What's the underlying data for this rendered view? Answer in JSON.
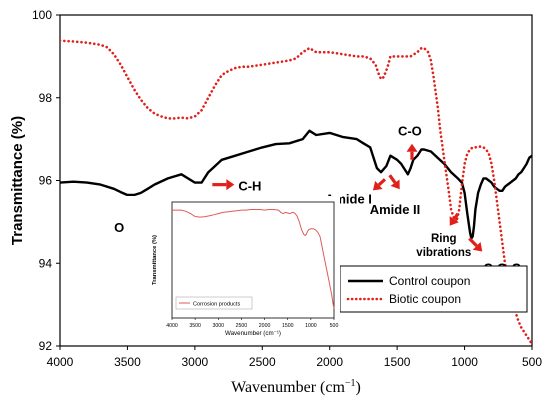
{
  "chart_data": [
    {
      "type": "line",
      "ylabel": "Transmittance (%)",
      "xlabel_main": "Wavenumber (cm",
      "xlabel_sup": "−1",
      "xlabel_close": ")",
      "xlim": [
        4000,
        500
      ],
      "ylim": [
        92,
        100
      ],
      "xticks": [
        "4000",
        "3500",
        "3000",
        "2500",
        "2000",
        "1500",
        "1000",
        "500"
      ],
      "yticks": [
        "92",
        "94",
        "96",
        "98",
        "100"
      ],
      "legend_position": "bottom-right",
      "series": [
        {
          "name": "Control coupon",
          "color": "#000000",
          "style": "solid",
          "x": [
            4000,
            3900,
            3800,
            3700,
            3600,
            3550,
            3500,
            3450,
            3400,
            3350,
            3300,
            3200,
            3100,
            3000,
            2950,
            2900,
            2850,
            2800,
            2700,
            2600,
            2500,
            2400,
            2300,
            2200,
            2150,
            2100,
            2000,
            1900,
            1800,
            1750,
            1700,
            1650,
            1620,
            1580,
            1550,
            1500,
            1470,
            1450,
            1420,
            1400,
            1380,
            1350,
            1320,
            1300,
            1250,
            1200,
            1150,
            1100,
            1050,
            1020,
            1000,
            980,
            960,
            950,
            940,
            930,
            920,
            900,
            880,
            860,
            840,
            820,
            800,
            780,
            760,
            740,
            720,
            700,
            680,
            660,
            640,
            620,
            600,
            580,
            560,
            540,
            520,
            500
          ],
          "y": [
            95.95,
            95.97,
            95.95,
            95.9,
            95.8,
            95.72,
            95.65,
            95.65,
            95.7,
            95.8,
            95.9,
            96.05,
            96.15,
            95.95,
            95.95,
            96.2,
            96.35,
            96.5,
            96.6,
            96.7,
            96.8,
            96.88,
            96.9,
            97.0,
            97.2,
            97.1,
            97.15,
            97.05,
            97.0,
            96.9,
            96.8,
            96.3,
            96.2,
            96.35,
            96.6,
            96.5,
            96.4,
            96.3,
            96.15,
            96.3,
            96.5,
            96.6,
            96.75,
            96.75,
            96.7,
            96.55,
            96.4,
            96.2,
            96.05,
            95.95,
            95.7,
            95.2,
            94.75,
            94.6,
            94.65,
            94.9,
            95.3,
            95.7,
            95.9,
            96.05,
            96.05,
            96.0,
            95.95,
            95.85,
            95.8,
            95.75,
            95.75,
            95.85,
            95.9,
            95.95,
            96.0,
            96.05,
            96.15,
            96.2,
            96.3,
            96.4,
            96.55,
            96.6
          ]
        },
        {
          "name": "Biotic coupon",
          "color": "#e0211b",
          "style": "dotted",
          "x": [
            4000,
            3900,
            3800,
            3700,
            3650,
            3600,
            3550,
            3500,
            3450,
            3400,
            3350,
            3300,
            3250,
            3200,
            3150,
            3100,
            3050,
            3000,
            2950,
            2900,
            2850,
            2800,
            2750,
            2700,
            2650,
            2600,
            2500,
            2400,
            2300,
            2250,
            2200,
            2150,
            2100,
            2050,
            2000,
            1900,
            1800,
            1750,
            1700,
            1660,
            1640,
            1620,
            1600,
            1570,
            1550,
            1500,
            1450,
            1400,
            1350,
            1320,
            1300,
            1270,
            1250,
            1230,
            1200,
            1180,
            1150,
            1120,
            1100,
            1080,
            1060,
            1040,
            1020,
            1000,
            980,
            960,
            940,
            920,
            900,
            880,
            860,
            840,
            820,
            800,
            780,
            760,
            740,
            720,
            700,
            680,
            660,
            640,
            620,
            600,
            580,
            560,
            540,
            520,
            500
          ],
          "y": [
            99.38,
            99.36,
            99.33,
            99.28,
            99.22,
            99.05,
            98.8,
            98.5,
            98.2,
            97.95,
            97.75,
            97.62,
            97.55,
            97.5,
            97.5,
            97.52,
            97.5,
            97.55,
            97.7,
            98.0,
            98.3,
            98.55,
            98.65,
            98.72,
            98.75,
            98.75,
            98.8,
            98.85,
            98.9,
            98.95,
            99.1,
            99.2,
            99.1,
            99.1,
            99.1,
            99.05,
            99.0,
            99.0,
            98.95,
            98.8,
            98.6,
            98.45,
            98.5,
            98.75,
            99.0,
            99.0,
            99.0,
            99.0,
            99.1,
            99.2,
            99.2,
            99.1,
            98.9,
            98.5,
            97.8,
            97.2,
            96.5,
            95.8,
            95.3,
            95.1,
            95.0,
            95.3,
            95.9,
            96.4,
            96.65,
            96.75,
            96.8,
            96.8,
            96.82,
            96.82,
            96.8,
            96.75,
            96.65,
            96.4,
            96.0,
            95.5,
            95.0,
            94.5,
            94.0,
            93.6,
            93.3,
            93.0,
            92.8,
            92.6,
            92.45,
            92.35,
            92.25,
            92.15,
            92.05
          ]
        }
      ],
      "annotations": [
        {
          "label": "O-H",
          "x": 3450,
          "y": 95.55,
          "dir": "down"
        },
        {
          "label": "C-H",
          "x": 2900,
          "y": 95.9,
          "dir": "right"
        },
        {
          "label": "Amide I",
          "x": 1620,
          "y": 96.1,
          "dir": "down-left"
        },
        {
          "label": "Amide II",
          "x": 1570,
          "y": 96.2,
          "dir": "down-right"
        },
        {
          "label": "C-O",
          "x": 1390,
          "y": 96.55,
          "dir": "up"
        },
        {
          "label": "Ring",
          "label2": "vibrations",
          "x": 1080,
          "y": 95.05,
          "dir": "down-left"
        },
        {
          "label": "C-O-C",
          "x": 950,
          "y": 94.55,
          "dir": "down-right"
        }
      ]
    },
    {
      "type": "line",
      "role": "inset",
      "ylabel": "Transmittance (%)",
      "xlabel": "Wavenumber (cm⁻¹)",
      "xlim": [
        4000,
        500
      ],
      "ylim": [
        0,
        1
      ],
      "xticks": [
        "4000",
        "3500",
        "3000",
        "2500",
        "2000",
        "1500",
        "1000",
        "500"
      ],
      "yticks": [],
      "legend_position": "bottom-left",
      "series": [
        {
          "name": "Corrosion products",
          "color": "#e05a5a",
          "style": "solid",
          "x": [
            4000,
            3900,
            3800,
            3700,
            3600,
            3500,
            3400,
            3300,
            3200,
            3100,
            3000,
            2900,
            2800,
            2700,
            2600,
            2500,
            2400,
            2300,
            2200,
            2100,
            2000,
            1900,
            1800,
            1700,
            1650,
            1600,
            1550,
            1500,
            1450,
            1400,
            1350,
            1300,
            1250,
            1200,
            1150,
            1120,
            1100,
            1080,
            1050,
            1000,
            950,
            900,
            850,
            800,
            750,
            700,
            650,
            600,
            550,
            520,
            500
          ],
          "y": [
            0.93,
            0.93,
            0.93,
            0.92,
            0.9,
            0.875,
            0.87,
            0.872,
            0.88,
            0.89,
            0.9,
            0.91,
            0.915,
            0.92,
            0.925,
            0.93,
            0.93,
            0.935,
            0.935,
            0.935,
            0.93,
            0.935,
            0.935,
            0.93,
            0.91,
            0.9,
            0.91,
            0.905,
            0.9,
            0.91,
            0.905,
            0.88,
            0.83,
            0.76,
            0.72,
            0.71,
            0.72,
            0.74,
            0.76,
            0.77,
            0.77,
            0.76,
            0.74,
            0.7,
            0.6,
            0.5,
            0.4,
            0.3,
            0.2,
            0.12,
            0.08
          ]
        }
      ]
    }
  ]
}
